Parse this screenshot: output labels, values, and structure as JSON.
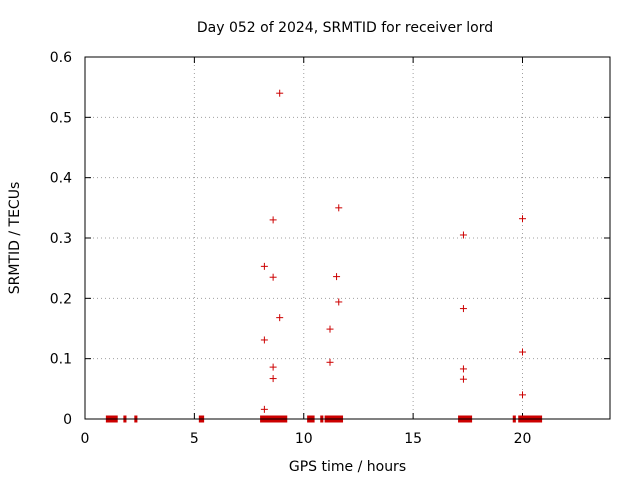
{
  "chart_data": {
    "type": "scatter",
    "title": "Day 052 of 2024, SRMTID for receiver lord",
    "xlabel": "GPS time / hours",
    "ylabel": "SRMTID / TECUs",
    "xlim": [
      0,
      24
    ],
    "ylim": [
      0,
      0.6
    ],
    "xticks": [
      "0",
      "5",
      "10",
      "15",
      "20"
    ],
    "yticks": [
      "0",
      "0.1",
      "0.2",
      "0.3",
      "0.4",
      "0.5",
      "0.6"
    ],
    "grid": true,
    "series_color": "#cc0000",
    "points": [
      [
        8.9,
        0.54
      ],
      [
        8.6,
        0.33
      ],
      [
        8.2,
        0.253
      ],
      [
        8.6,
        0.235
      ],
      [
        8.9,
        0.168
      ],
      [
        8.2,
        0.131
      ],
      [
        8.6,
        0.086
      ],
      [
        8.6,
        0.067
      ],
      [
        8.2,
        0.016
      ],
      [
        11.6,
        0.35
      ],
      [
        11.5,
        0.236
      ],
      [
        11.6,
        0.194
      ],
      [
        11.2,
        0.149
      ],
      [
        11.2,
        0.094
      ],
      [
        17.3,
        0.305
      ],
      [
        17.3,
        0.183
      ],
      [
        17.3,
        0.083
      ],
      [
        17.3,
        0.066
      ],
      [
        20.0,
        0.332
      ],
      [
        20.0,
        0.111
      ],
      [
        20.0,
        0.04
      ]
    ],
    "zero_ranges": [
      [
        1.0,
        1.45
      ],
      [
        1.8,
        1.85
      ],
      [
        2.3,
        2.35
      ],
      [
        5.25,
        5.4
      ],
      [
        8.05,
        9.2
      ],
      [
        10.2,
        10.45
      ],
      [
        10.8,
        10.85
      ],
      [
        11.0,
        11.75
      ],
      [
        17.1,
        17.65
      ],
      [
        19.6,
        19.65
      ],
      [
        19.85,
        20.85
      ]
    ]
  }
}
